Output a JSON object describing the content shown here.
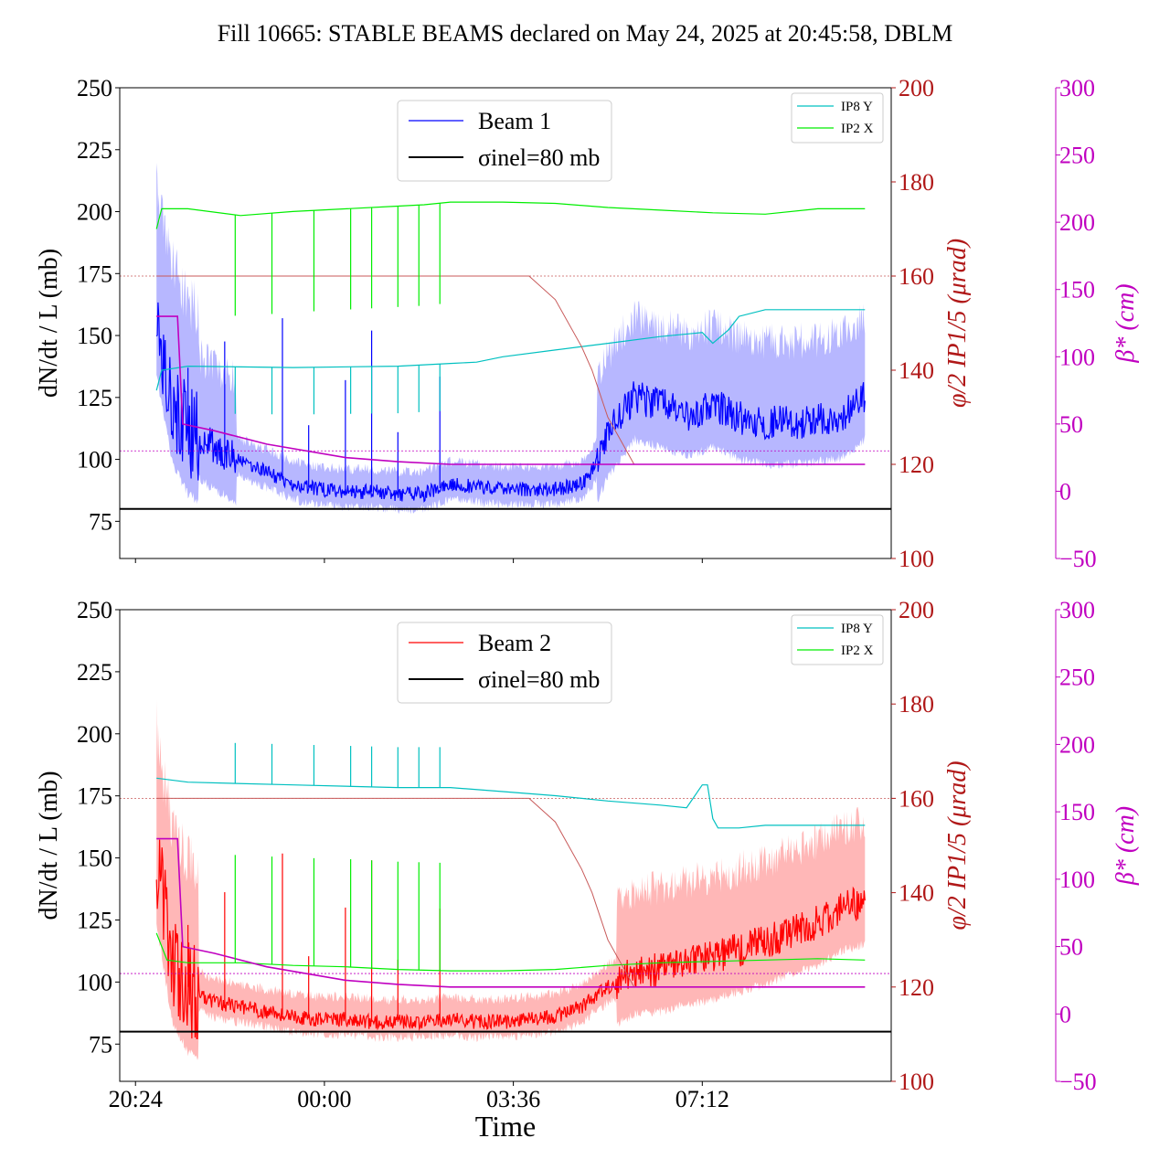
{
  "title": "Fill 10665: STABLE BEAMS declared on May 24, 2025 at 20:45:58, DBLM",
  "colors": {
    "beam1": "#0000ff",
    "beam1_band": "#aaaaff",
    "beam2": "#ff0000",
    "beam2_band": "#ffaaaa",
    "crossing_angle": "#c85a5a",
    "beta_star": "#c000c0",
    "ip8": "#00c0c0",
    "ip2": "#00ee00",
    "sigma": "#000000",
    "right_axis_red": "#b01818",
    "beta_axis": "#c000c0"
  },
  "chart_data": [
    {
      "type": "line",
      "panel": "top",
      "xlabel": "",
      "x_ticks": [
        "20:24",
        "00:00",
        "03:36",
        "07:12"
      ],
      "x_range_hours": [
        -0.3,
        14.4
      ],
      "ylabel_left": "dN/dt / L (mb)",
      "ylim_left": [
        60,
        250
      ],
      "yticks_left": [
        75,
        100,
        125,
        150,
        175,
        200,
        225,
        250
      ],
      "ylabel_right1": "φ/2 IP1/5 (μrad)",
      "ylim_right1": [
        100,
        200
      ],
      "yticks_right1": [
        100,
        120,
        140,
        160,
        180,
        200
      ],
      "ylabel_right2": "β* (cm)",
      "ylim_right2": [
        -50,
        300
      ],
      "yticks_right2": [
        -50,
        0,
        50,
        100,
        150,
        200,
        250,
        300
      ],
      "legend_main": [
        {
          "label": "Beam 1",
          "style": "line"
        },
        {
          "label": "σinel=80 mb",
          "style": "line"
        }
      ],
      "legend_small": [
        "IP8 Y",
        "IP2 X"
      ],
      "sigma_inel": 80,
      "crossing_angle_ref": 160,
      "beta_star_ref": 30,
      "series": [
        {
          "name": "Beam 1",
          "axis": "left",
          "x": [
            0.4,
            0.7,
            1.0,
            1.5,
            2.0,
            2.5,
            3.0,
            3.5,
            4.0,
            4.5,
            5.0,
            5.5,
            6.0,
            6.5,
            7.0,
            7.5,
            8.0,
            8.5,
            8.7,
            9.0,
            9.5,
            10.0,
            10.5,
            11.0,
            11.5,
            12.0,
            12.5,
            13.0,
            13.5,
            13.9
          ],
          "y": [
            160,
            125,
            112,
            105,
            99,
            95,
            90,
            88,
            87,
            87,
            86,
            86,
            90,
            89,
            88,
            88,
            88,
            90,
            95,
            110,
            125,
            122,
            118,
            122,
            117,
            115,
            115,
            116,
            118,
            125
          ]
        },
        {
          "name": "IP8 Y",
          "axis": "right2",
          "x": [
            0.4,
            0.5,
            1.0,
            3.0,
            5.0,
            6.0,
            6.5,
            7.0,
            8.0,
            9.0,
            10.0,
            10.8,
            11.0,
            11.3,
            11.5,
            12.0,
            13.0,
            13.9
          ],
          "y": [
            75,
            90,
            93,
            92,
            93,
            95,
            96,
            100,
            105,
            110,
            115,
            118,
            110,
            120,
            130,
            135,
            135,
            135
          ]
        },
        {
          "name": "IP2 X",
          "axis": "right2",
          "x": [
            0.4,
            0.5,
            1.0,
            2.0,
            3.0,
            5.0,
            5.5,
            6.0,
            7.0,
            8.0,
            9.0,
            10.0,
            11.0,
            12.0,
            13.0,
            13.9
          ],
          "y": [
            195,
            210,
            210,
            205,
            208,
            212,
            213,
            215,
            215,
            214,
            211,
            209,
            207,
            206,
            210,
            210
          ]
        },
        {
          "name": "φ/2 IP1/5",
          "axis": "right1",
          "x": [
            0.4,
            7.5,
            8.0,
            8.5,
            8.7,
            9.0,
            9.5,
            13.9
          ],
          "y": [
            160,
            160,
            155,
            145,
            140,
            130,
            120,
            120
          ]
        },
        {
          "name": "β*",
          "axis": "right2",
          "x": [
            0.4,
            0.8,
            0.9,
            1.5,
            2.5,
            4.0,
            5.0,
            6.0,
            13.9
          ],
          "y": [
            130,
            130,
            50,
            45,
            35,
            25,
            22,
            20,
            20
          ]
        }
      ]
    },
    {
      "type": "line",
      "panel": "bottom",
      "xlabel": "Time",
      "x_ticks": [
        "20:24",
        "00:00",
        "03:36",
        "07:12"
      ],
      "x_range_hours": [
        -0.3,
        14.4
      ],
      "ylabel_left": "dN/dt / L (mb)",
      "ylim_left": [
        60,
        250
      ],
      "yticks_left": [
        75,
        100,
        125,
        150,
        175,
        200,
        225,
        250
      ],
      "ylabel_right1": "φ/2 IP1/5 (μrad)",
      "ylim_right1": [
        100,
        200
      ],
      "yticks_right1": [
        100,
        120,
        140,
        160,
        180,
        200
      ],
      "ylabel_right2": "β* (cm)",
      "ylim_right2": [
        -50,
        300
      ],
      "yticks_right2": [
        -50,
        0,
        50,
        100,
        150,
        200,
        250,
        300
      ],
      "legend_main": [
        {
          "label": "Beam 2",
          "style": "line"
        },
        {
          "label": "σinel=80 mb",
          "style": "line"
        }
      ],
      "legend_small": [
        "IP8 Y",
        "IP2 X"
      ],
      "sigma_inel": 80,
      "crossing_angle_ref": 160,
      "beta_star_ref": 30,
      "series": [
        {
          "name": "Beam 2",
          "axis": "left",
          "x": [
            0.4,
            0.7,
            1.0,
            1.5,
            2.0,
            2.5,
            3.0,
            3.5,
            4.0,
            4.5,
            5.0,
            5.5,
            6.0,
            6.5,
            7.0,
            7.5,
            8.0,
            8.5,
            9.0,
            9.5,
            10.0,
            10.5,
            11.0,
            11.5,
            12.0,
            12.5,
            13.0,
            13.5,
            13.9
          ],
          "y": [
            150,
            110,
            98,
            92,
            90,
            88,
            86,
            85,
            85,
            84,
            84,
            84,
            85,
            84,
            84,
            85,
            86,
            90,
            98,
            104,
            105,
            108,
            110,
            113,
            116,
            120,
            124,
            130,
            132
          ]
        },
        {
          "name": "IP8 Y",
          "axis": "right2",
          "x": [
            0.4,
            1.0,
            3.0,
            5.0,
            6.0,
            7.0,
            8.0,
            9.0,
            10.0,
            10.5,
            10.8,
            10.9,
            11.0,
            11.1,
            11.5,
            12.0,
            13.0,
            13.9
          ],
          "y": [
            175,
            172,
            170,
            168,
            168,
            165,
            162,
            158,
            155,
            153,
            170,
            170,
            145,
            138,
            138,
            140,
            140,
            140
          ]
        },
        {
          "name": "IP2 X",
          "axis": "right2",
          "x": [
            0.4,
            0.6,
            1.0,
            2.0,
            3.0,
            4.0,
            5.0,
            6.0,
            7.0,
            8.0,
            9.0,
            10.0,
            11.0,
            12.0,
            13.0,
            13.9
          ],
          "y": [
            60,
            40,
            38,
            38,
            36,
            35,
            33,
            32,
            32,
            33,
            36,
            38,
            39,
            40,
            41,
            40
          ]
        },
        {
          "name": "φ/2 IP1/5",
          "axis": "right1",
          "x": [
            0.4,
            7.5,
            8.0,
            8.5,
            8.7,
            9.0,
            9.5,
            13.9
          ],
          "y": [
            160,
            160,
            155,
            145,
            140,
            130,
            120,
            120
          ]
        },
        {
          "name": "β*",
          "axis": "right2",
          "x": [
            0.4,
            0.8,
            0.9,
            1.5,
            2.5,
            4.0,
            5.0,
            6.0,
            13.9
          ],
          "y": [
            130,
            130,
            50,
            45,
            35,
            25,
            22,
            20,
            20
          ]
        }
      ]
    }
  ]
}
